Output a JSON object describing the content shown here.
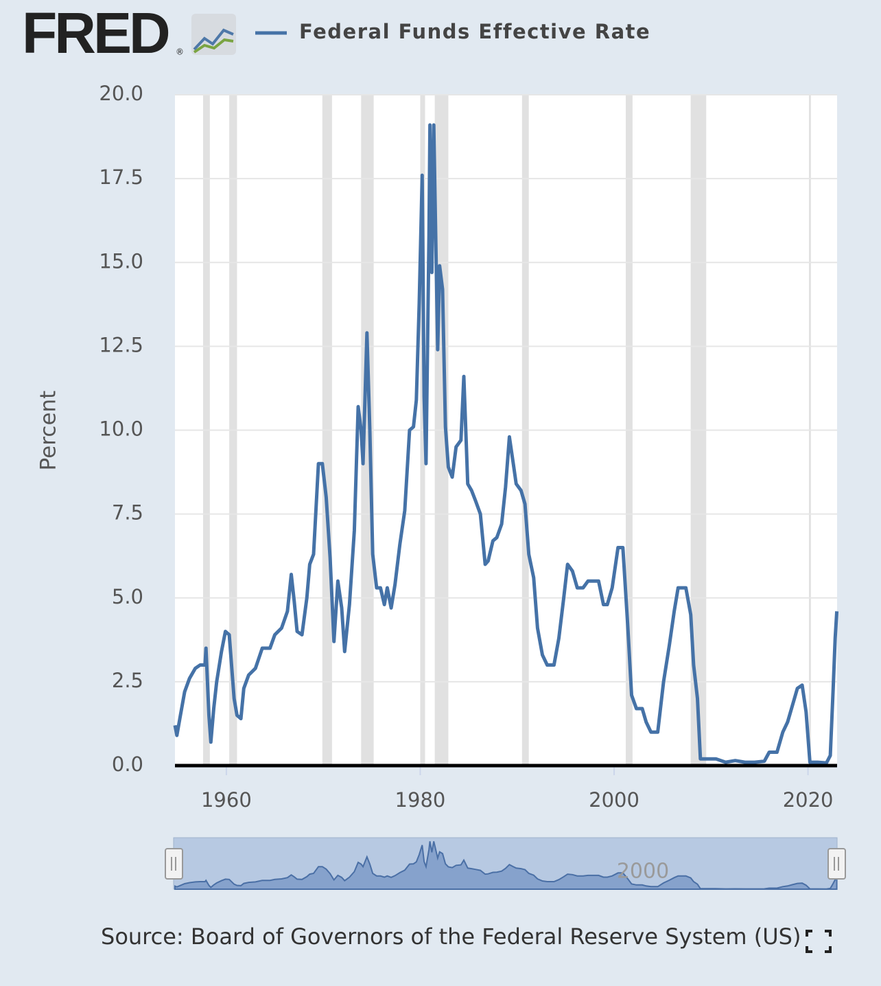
{
  "header": {
    "logo": "FRED",
    "registered": "®"
  },
  "source": "Source: Board of Governors of the Federal Reserve System (US)",
  "chart_data": {
    "type": "line",
    "y_label": "Percent",
    "x": [
      1954.7,
      1954.9,
      1955.2,
      1955.7,
      1956.2,
      1956.8,
      1957.3,
      1957.8,
      1957.9,
      1958.2,
      1958.4,
      1958.7,
      1959.0,
      1959.5,
      1959.9,
      1960.3,
      1960.8,
      1961.1,
      1961.5,
      1961.8,
      1962.3,
      1963.0,
      1963.7,
      1964.5,
      1965.0,
      1965.7,
      1966.3,
      1966.7,
      1967.0,
      1967.3,
      1967.8,
      1968.3,
      1968.6,
      1969.0,
      1969.5,
      1969.9,
      1970.3,
      1970.7,
      1971.1,
      1971.5,
      1971.9,
      1972.2,
      1972.7,
      1973.2,
      1973.6,
      1973.9,
      1974.1,
      1974.5,
      1974.8,
      1975.1,
      1975.5,
      1975.9,
      1976.3,
      1976.6,
      1977.0,
      1977.4,
      1977.9,
      1978.4,
      1978.9,
      1979.3,
      1979.6,
      1979.9,
      1980.2,
      1980.4,
      1980.6,
      1980.9,
      1981.0,
      1981.2,
      1981.4,
      1981.8,
      1982.0,
      1982.3,
      1982.6,
      1982.9,
      1983.3,
      1983.7,
      1984.2,
      1984.5,
      1984.9,
      1985.3,
      1985.7,
      1986.2,
      1986.7,
      1987.0,
      1987.5,
      1987.9,
      1988.4,
      1988.8,
      1989.2,
      1989.6,
      1989.9,
      1990.4,
      1990.8,
      1991.2,
      1991.7,
      1992.1,
      1992.6,
      1993.1,
      1993.8,
      1994.3,
      1994.8,
      1995.2,
      1995.7,
      1996.2,
      1996.8,
      1997.3,
      1997.9,
      1998.4,
      1998.9,
      1999.3,
      1999.8,
      2000.4,
      2000.9,
      2001.4,
      2001.8,
      2002.3,
      2002.9,
      2003.3,
      2003.8,
      2004.5,
      2005.1,
      2005.7,
      2006.2,
      2006.6,
      2007.4,
      2007.9,
      2008.2,
      2008.6,
      2008.9,
      2009.5,
      2010.5,
      2011.5,
      2012.5,
      2013.5,
      2014.5,
      2015.5,
      2016.0,
      2016.8,
      2017.4,
      2017.9,
      2018.4,
      2018.9,
      2019.4,
      2019.8,
      2020.2,
      2021.0,
      2021.9,
      2022.3,
      2022.6,
      2022.8,
      2022.97
    ],
    "series": [
      {
        "name": "Federal Funds Effective Rate",
        "color": "#4572a7",
        "values": [
          1.2,
          0.9,
          1.4,
          2.2,
          2.6,
          2.9,
          3.0,
          3.0,
          3.5,
          1.5,
          0.7,
          1.7,
          2.5,
          3.4,
          4.0,
          3.9,
          2.0,
          1.5,
          1.4,
          2.3,
          2.7,
          2.9,
          3.5,
          3.5,
          3.9,
          4.1,
          4.6,
          5.7,
          4.9,
          4.0,
          3.9,
          5.0,
          6.0,
          6.3,
          9.0,
          9.0,
          8.0,
          6.2,
          3.7,
          5.5,
          4.7,
          3.4,
          4.8,
          7.0,
          10.7,
          10.0,
          9.0,
          12.9,
          10.0,
          6.3,
          5.3,
          5.3,
          4.8,
          5.3,
          4.7,
          5.4,
          6.6,
          7.6,
          10.0,
          10.1,
          10.9,
          13.8,
          17.6,
          11.0,
          9.0,
          15.8,
          19.1,
          14.7,
          19.1,
          12.4,
          14.9,
          14.2,
          10.1,
          8.9,
          8.6,
          9.5,
          9.7,
          11.6,
          8.4,
          8.2,
          7.9,
          7.5,
          6.0,
          6.1,
          6.7,
          6.8,
          7.2,
          8.3,
          9.8,
          9.0,
          8.4,
          8.2,
          7.8,
          6.3,
          5.6,
          4.1,
          3.3,
          3.0,
          3.0,
          3.8,
          5.0,
          6.0,
          5.8,
          5.3,
          5.3,
          5.5,
          5.5,
          5.5,
          4.8,
          4.8,
          5.3,
          6.5,
          6.5,
          4.2,
          2.1,
          1.7,
          1.7,
          1.3,
          1.0,
          1.0,
          2.5,
          3.6,
          4.6,
          5.3,
          5.3,
          4.5,
          3.0,
          2.0,
          0.2,
          0.2,
          0.2,
          0.1,
          0.15,
          0.1,
          0.1,
          0.13,
          0.4,
          0.4,
          1.0,
          1.3,
          1.8,
          2.3,
          2.4,
          1.6,
          0.1,
          0.1,
          0.08,
          0.3,
          2.3,
          3.8,
          4.6
        ]
      }
    ],
    "recessions": [
      [
        1957.6,
        1958.3
      ],
      [
        1960.3,
        1961.1
      ],
      [
        1969.9,
        1970.9
      ],
      [
        1973.9,
        1975.2
      ],
      [
        1980.0,
        1980.5
      ],
      [
        1981.5,
        1982.9
      ],
      [
        1990.5,
        1991.2
      ],
      [
        2001.2,
        2001.9
      ],
      [
        2007.9,
        2009.5
      ],
      [
        2020.1,
        2020.3
      ]
    ],
    "recession_color": "#e1e1e1",
    "xlim": [
      1954.7,
      2023.0
    ],
    "xticks": [
      1960,
      1980,
      2000,
      2020
    ],
    "ylim": [
      0,
      20
    ],
    "yticks": [
      {
        "value": 0,
        "label": "0.0"
      },
      2.5,
      {
        "value": 5,
        "label": "5.0"
      },
      7.5,
      {
        "value": 10,
        "label": "10.0"
      },
      12.5,
      {
        "value": 15,
        "label": "15.0"
      },
      17.5,
      {
        "value": 20,
        "label": "20.0"
      }
    ],
    "grid": true,
    "navigator_xticks": [
      2000
    ]
  }
}
